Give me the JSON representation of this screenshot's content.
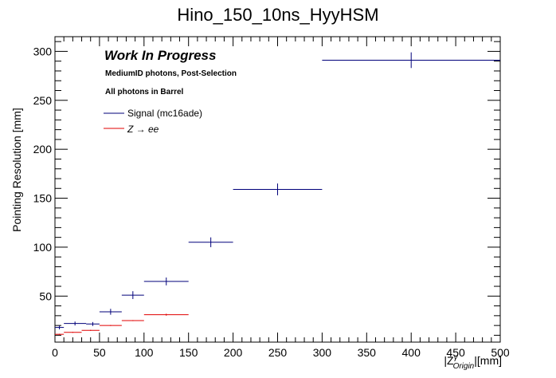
{
  "chart_data": {
    "type": "scatter",
    "title": "Hino_150_10ns_HyyHSM",
    "xlabel": "|Z_Origin^γ|[mm]",
    "ylabel": "Pointing Resolution [mm]",
    "xlim": [
      0,
      500
    ],
    "ylim": [
      3,
      315
    ],
    "x_ticks": [
      0,
      50,
      100,
      150,
      200,
      250,
      300,
      350,
      400,
      450,
      500
    ],
    "y_ticks": [
      50,
      100,
      150,
      200,
      250,
      300
    ],
    "grid": false,
    "legend_position": "top-left",
    "annotations": {
      "work_in_progress": "Work In Progress",
      "selection": "MediumID photons, Post-Selection",
      "region": "All photons in Barrel"
    },
    "series": [
      {
        "name": "Signal (mc16ade)",
        "color": "#00007a",
        "points": [
          {
            "x": 5,
            "xlo": 0,
            "xhi": 10,
            "y": 18,
            "yerr": 2
          },
          {
            "x": 22.5,
            "xlo": 10,
            "xhi": 35,
            "y": 22,
            "yerr": 2
          },
          {
            "x": 42.5,
            "xlo": 35,
            "xhi": 50,
            "y": 21.5,
            "yerr": 2
          },
          {
            "x": 62.5,
            "xlo": 50,
            "xhi": 75,
            "y": 34,
            "yerr": 3
          },
          {
            "x": 87.5,
            "xlo": 75,
            "xhi": 100,
            "y": 51,
            "yerr": 4
          },
          {
            "x": 125,
            "xlo": 100,
            "xhi": 150,
            "y": 65,
            "yerr": 4
          },
          {
            "x": 175,
            "xlo": 150,
            "xhi": 200,
            "y": 105,
            "yerr": 5
          },
          {
            "x": 250,
            "xlo": 200,
            "xhi": 300,
            "y": 159,
            "yerr": 6
          },
          {
            "x": 400,
            "xlo": 300,
            "xhi": 500,
            "y": 291,
            "yerr": 8
          }
        ]
      },
      {
        "name": "Z → ee",
        "name_math": "Z → ee",
        "color": "#e00000",
        "points": [
          {
            "x": 5,
            "xlo": 0,
            "xhi": 10,
            "y": 11,
            "yerr": 0.5
          },
          {
            "x": 20,
            "xlo": 10,
            "xhi": 30,
            "y": 13,
            "yerr": 0.5
          },
          {
            "x": 40,
            "xlo": 30,
            "xhi": 50,
            "y": 15,
            "yerr": 0.5
          },
          {
            "x": 62.5,
            "xlo": 50,
            "xhi": 75,
            "y": 20,
            "yerr": 0.5
          },
          {
            "x": 87.5,
            "xlo": 75,
            "xhi": 100,
            "y": 25,
            "yerr": 0.5
          },
          {
            "x": 125,
            "xlo": 100,
            "xhi": 150,
            "y": 31,
            "yerr": 1
          }
        ]
      }
    ]
  }
}
